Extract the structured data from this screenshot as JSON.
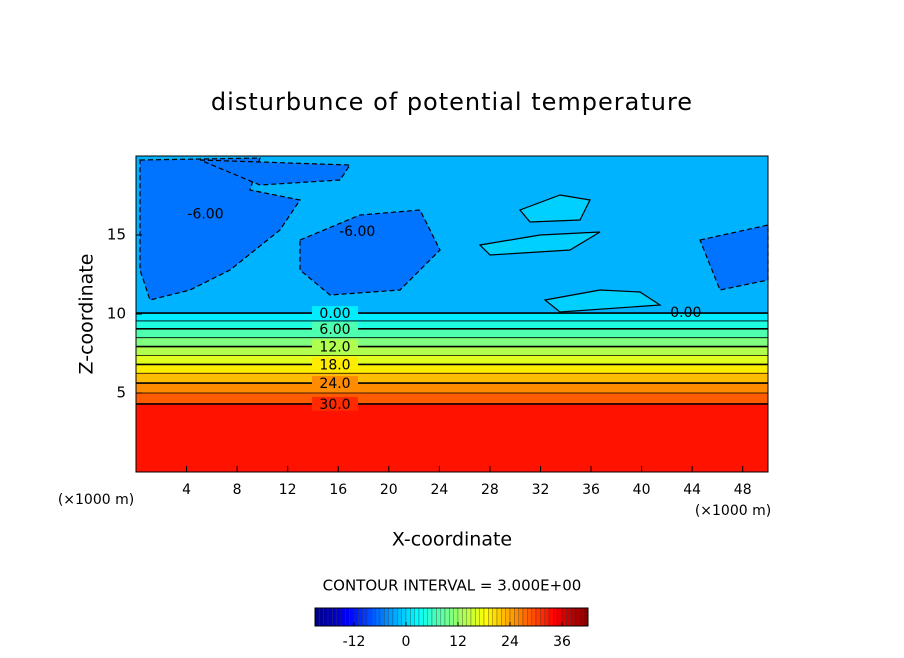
{
  "chart_data": {
    "type": "contour",
    "title": "disturbunce of potential temperature",
    "x_label": "X-coordinate",
    "y_label": "Z-coordinate",
    "x_unit": "(×1000 m)",
    "y_unit": "(×1000 m)",
    "xlim": [
      0,
      50
    ],
    "ylim": [
      0,
      20
    ],
    "xticks": [
      4,
      8,
      12,
      16,
      20,
      24,
      28,
      32,
      36,
      40,
      44,
      48
    ],
    "yticks": [
      5,
      10,
      15
    ],
    "contours": [
      {
        "level": 0,
        "z": 10.06,
        "label": "0.00"
      },
      {
        "level": 3,
        "z": 9.56
      },
      {
        "level": 6,
        "z": 9.06,
        "label": "6.00"
      },
      {
        "level": 9,
        "z": 8.5
      },
      {
        "level": 12,
        "z": 7.94,
        "label": "12.0"
      },
      {
        "level": 15,
        "z": 7.38
      },
      {
        "level": 18,
        "z": 6.81,
        "label": "18.0"
      },
      {
        "level": 21,
        "z": 6.25
      },
      {
        "level": 24,
        "z": 5.63,
        "label": "24.0"
      },
      {
        "level": 27,
        "z": 5.0
      },
      {
        "level": 30,
        "z": 4.31,
        "label": "30.0"
      }
    ],
    "annotations": [
      {
        "text": "-6.00",
        "x": 5.5,
        "z": 16.3
      },
      {
        "text": "-6.00",
        "x": 17.5,
        "z": 15.2
      },
      {
        "text": "0.00",
        "x": 43.5,
        "z": 10.06
      }
    ],
    "contour_interval": "CONTOUR INTERVAL = 3.000E+00",
    "colorbar": {
      "lim": [
        -21,
        42
      ],
      "ticks": [
        -12,
        0,
        12,
        24,
        36
      ]
    }
  }
}
